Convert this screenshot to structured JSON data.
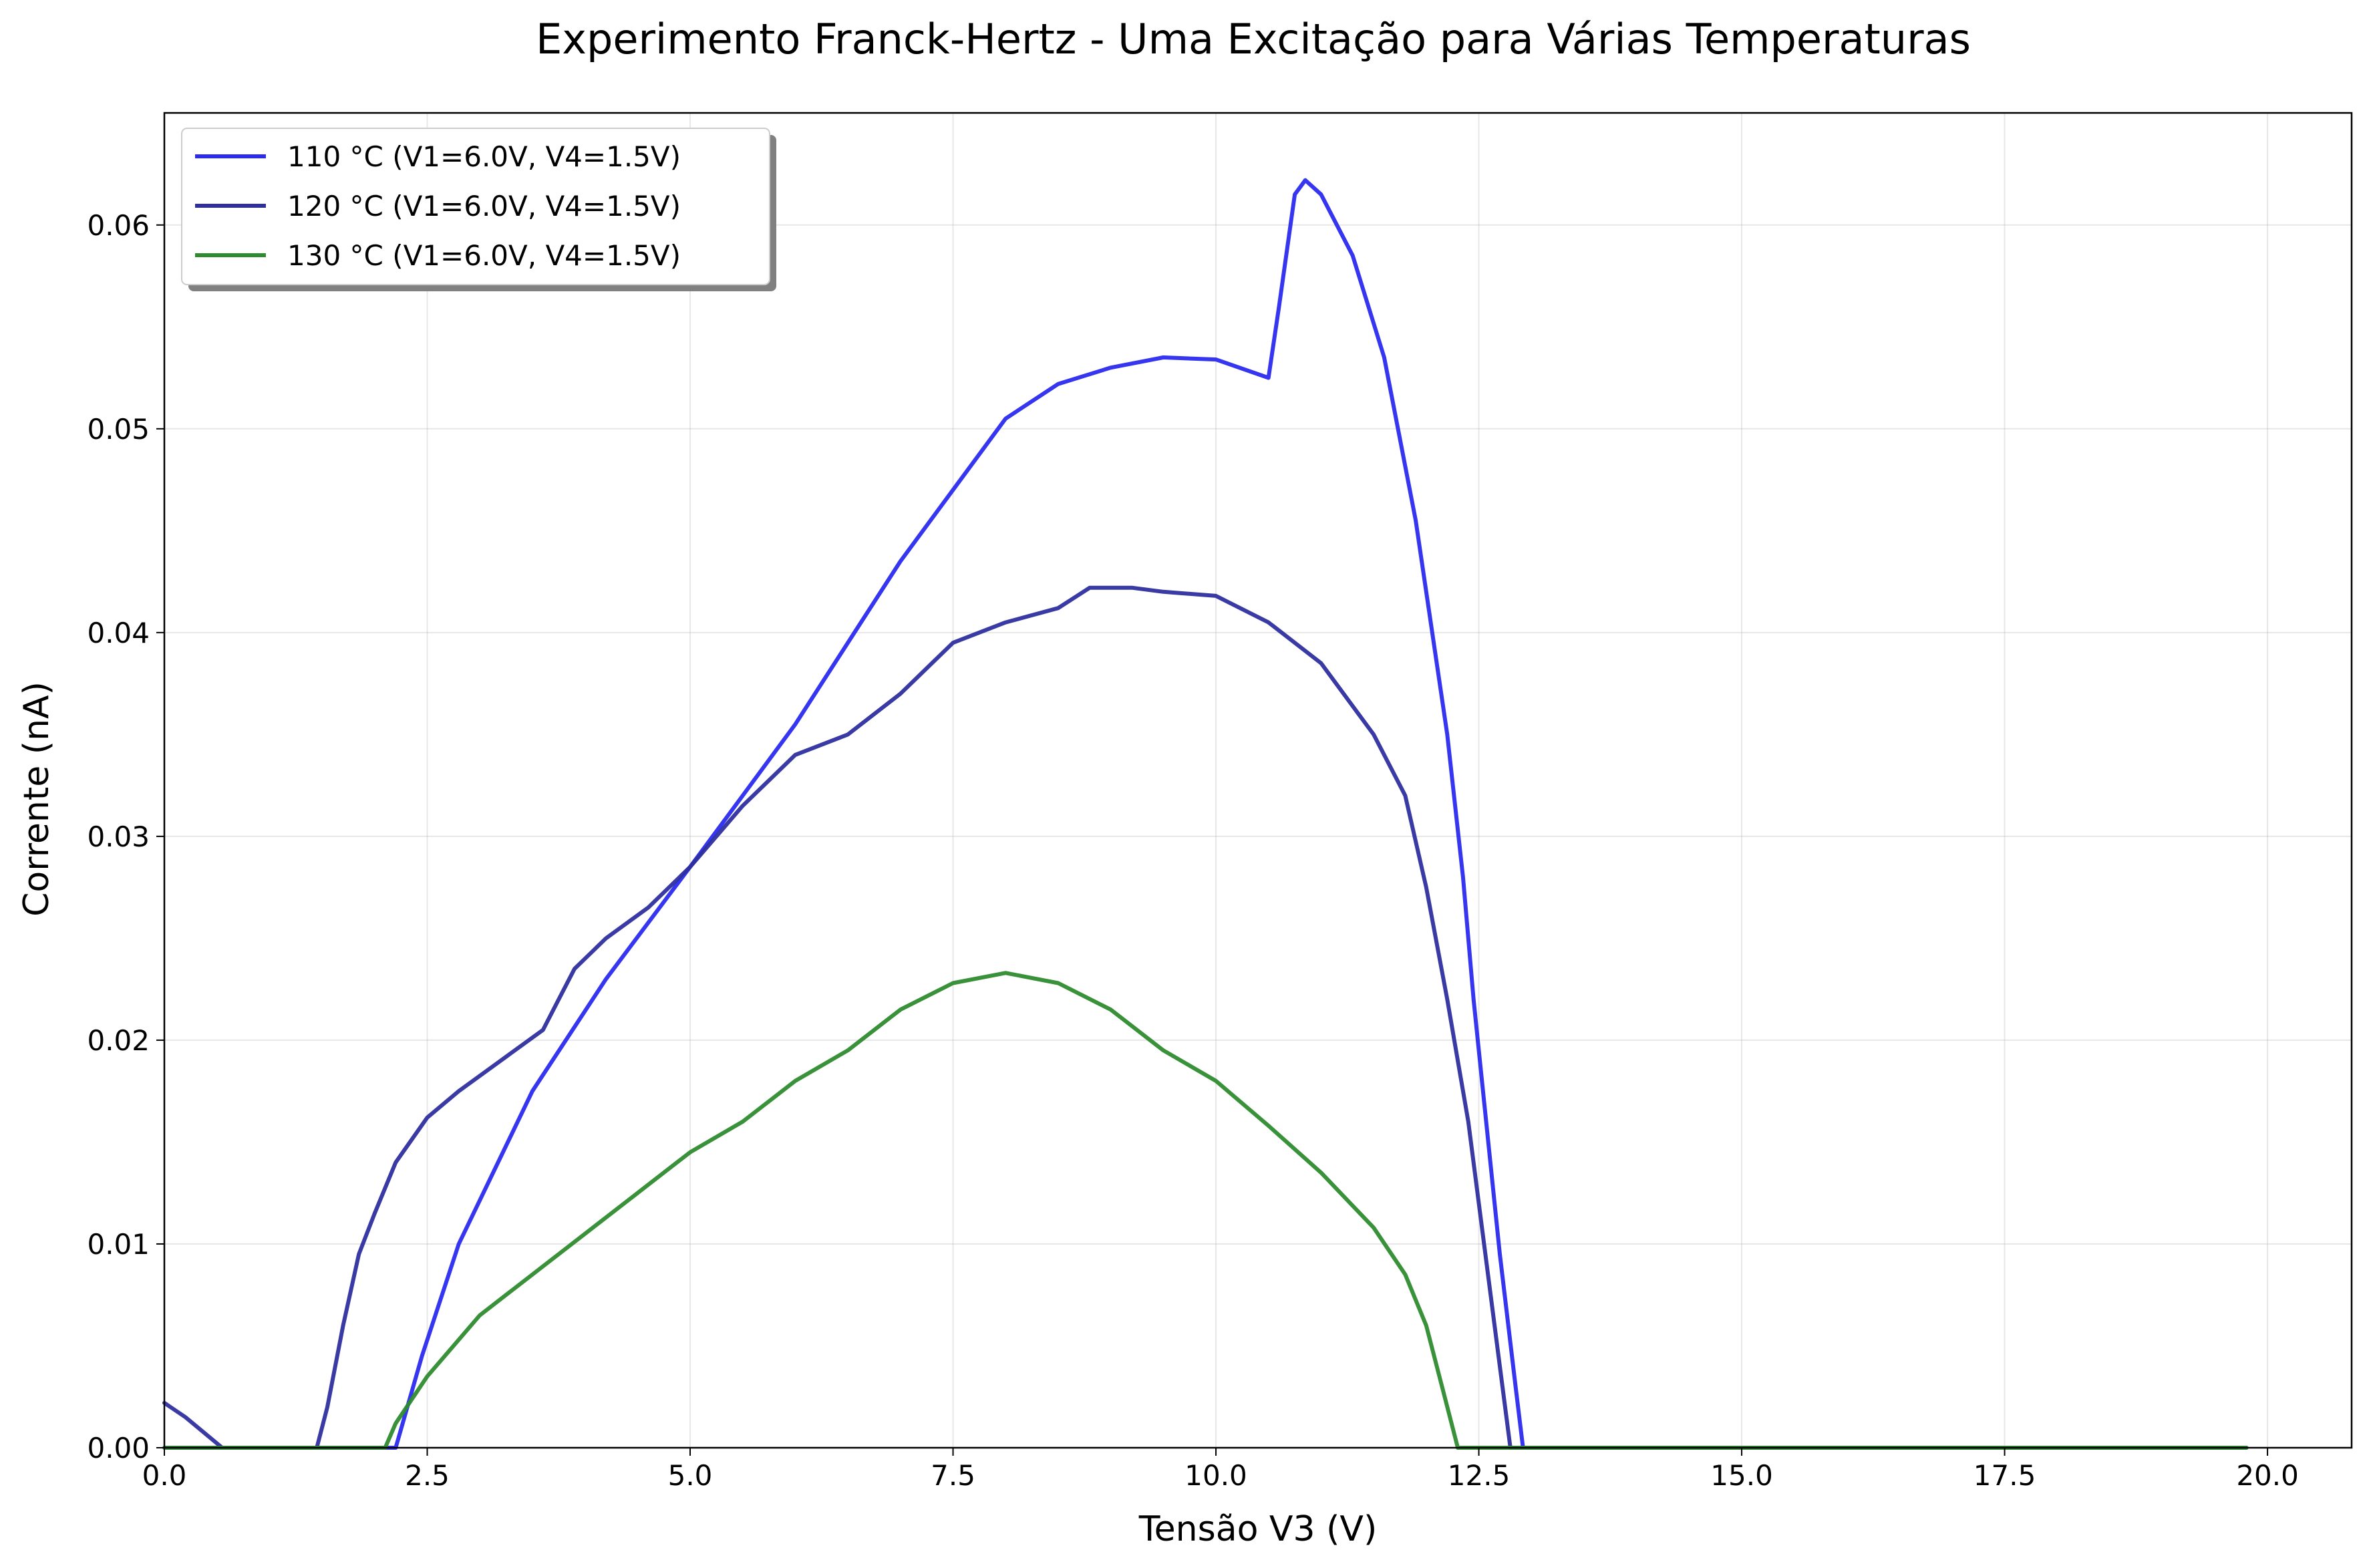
{
  "chart_data": {
    "type": "line",
    "title": "Experimento Franck-Hertz - Uma Excitação para Várias Temperaturas",
    "xlabel": "Tensão V3 (V)",
    "ylabel": "Corrente (nA)",
    "xlim": [
      0,
      20.8
    ],
    "ylim": [
      0,
      0.0655
    ],
    "xticks": [
      0,
      2.5,
      5,
      7.5,
      10,
      12.5,
      15,
      17.5,
      20
    ],
    "xtick_labels": [
      "0.0",
      "2.5",
      "5.0",
      "7.5",
      "10.0",
      "12.5",
      "15.0",
      "17.5",
      "20.0"
    ],
    "yticks": [
      0,
      0.01,
      0.02,
      0.03,
      0.04,
      0.05,
      0.06
    ],
    "ytick_labels": [
      "0.00",
      "0.01",
      "0.02",
      "0.03",
      "0.04",
      "0.05",
      "0.06"
    ],
    "grid": true,
    "legend_position": "top-left",
    "series": [
      {
        "name": "110 °C (V1=6.0V, V4=1.5V)",
        "color": "#2b2bf0",
        "points": [
          [
            0,
            0
          ],
          [
            2.2,
            0
          ],
          [
            2.45,
            0.0045
          ],
          [
            2.8,
            0.01
          ],
          [
            3.5,
            0.0175
          ],
          [
            4.2,
            0.023
          ],
          [
            5.0,
            0.0285
          ],
          [
            5.5,
            0.032
          ],
          [
            6.0,
            0.0355
          ],
          [
            6.5,
            0.0395
          ],
          [
            7.0,
            0.0435
          ],
          [
            7.5,
            0.047
          ],
          [
            8.0,
            0.0505
          ],
          [
            8.5,
            0.0522
          ],
          [
            9.0,
            0.053
          ],
          [
            9.5,
            0.0535
          ],
          [
            10.0,
            0.0534
          ],
          [
            10.5,
            0.0525
          ],
          [
            10.6,
            0.056
          ],
          [
            10.75,
            0.0615
          ],
          [
            10.85,
            0.0622
          ],
          [
            11.0,
            0.0615
          ],
          [
            11.3,
            0.0585
          ],
          [
            11.6,
            0.0535
          ],
          [
            11.9,
            0.0455
          ],
          [
            12.2,
            0.035
          ],
          [
            12.35,
            0.028
          ],
          [
            12.45,
            0.022
          ],
          [
            12.55,
            0.017
          ],
          [
            12.7,
            0.0095
          ],
          [
            12.85,
            0.003
          ],
          [
            12.92,
            0
          ],
          [
            19.8,
            0
          ]
        ]
      },
      {
        "name": "120 °C (V1=6.0V, V4=1.5V)",
        "color": "#2f2f9f",
        "points": [
          [
            0,
            0.0022
          ],
          [
            0.2,
            0.0015
          ],
          [
            0.55,
            0
          ],
          [
            1.45,
            0
          ],
          [
            1.55,
            0.002
          ],
          [
            1.7,
            0.006
          ],
          [
            1.85,
            0.0095
          ],
          [
            2.0,
            0.0115
          ],
          [
            2.2,
            0.014
          ],
          [
            2.5,
            0.0162
          ],
          [
            2.8,
            0.0175
          ],
          [
            3.2,
            0.019
          ],
          [
            3.6,
            0.0205
          ],
          [
            3.75,
            0.022
          ],
          [
            3.9,
            0.0235
          ],
          [
            4.2,
            0.025
          ],
          [
            4.6,
            0.0265
          ],
          [
            5.0,
            0.0285
          ],
          [
            5.5,
            0.0315
          ],
          [
            6.0,
            0.034
          ],
          [
            6.5,
            0.035
          ],
          [
            7.0,
            0.037
          ],
          [
            7.5,
            0.0395
          ],
          [
            8.0,
            0.0405
          ],
          [
            8.5,
            0.0412
          ],
          [
            8.8,
            0.0422
          ],
          [
            9.2,
            0.0422
          ],
          [
            9.5,
            0.042
          ],
          [
            10.0,
            0.0418
          ],
          [
            10.5,
            0.0405
          ],
          [
            11.0,
            0.0385
          ],
          [
            11.5,
            0.035
          ],
          [
            11.8,
            0.032
          ],
          [
            12.0,
            0.0275
          ],
          [
            12.2,
            0.022
          ],
          [
            12.4,
            0.016
          ],
          [
            12.55,
            0.01
          ],
          [
            12.7,
            0.004
          ],
          [
            12.8,
            0
          ],
          [
            19.8,
            0
          ]
        ]
      },
      {
        "name": "130 °C (V1=6.0V, V4=1.5V)",
        "color": "#2e8b2e",
        "points": [
          [
            0,
            0
          ],
          [
            2.1,
            0
          ],
          [
            2.2,
            0.0012
          ],
          [
            2.5,
            0.0035
          ],
          [
            3.0,
            0.0065
          ],
          [
            3.5,
            0.0085
          ],
          [
            4.0,
            0.0105
          ],
          [
            4.5,
            0.0125
          ],
          [
            5.0,
            0.0145
          ],
          [
            5.5,
            0.016
          ],
          [
            6.0,
            0.018
          ],
          [
            6.5,
            0.0195
          ],
          [
            7.0,
            0.0215
          ],
          [
            7.5,
            0.0228
          ],
          [
            8.0,
            0.0233
          ],
          [
            8.5,
            0.0228
          ],
          [
            9.0,
            0.0215
          ],
          [
            9.5,
            0.0195
          ],
          [
            10.0,
            0.018
          ],
          [
            10.5,
            0.0158
          ],
          [
            11.0,
            0.0135
          ],
          [
            11.5,
            0.0108
          ],
          [
            11.8,
            0.0085
          ],
          [
            12.0,
            0.006
          ],
          [
            12.15,
            0.003
          ],
          [
            12.3,
            0
          ],
          [
            19.8,
            0
          ]
        ]
      }
    ]
  }
}
